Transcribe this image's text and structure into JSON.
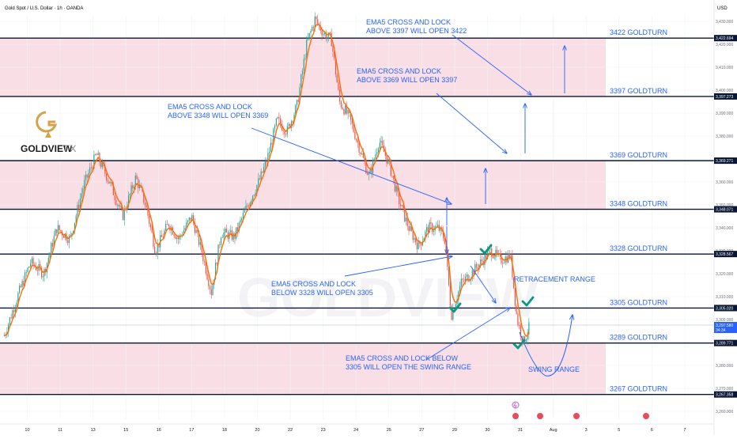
{
  "chart_data": {
    "type": "candlestick",
    "title": "Gold Spot / U.S. Dollar · 1h · OANDA",
    "currency_label": "USD",
    "y_axis": {
      "min": 3252.6,
      "max": 3433.9,
      "ticks": [
        3260,
        3270,
        3280,
        3290,
        3300,
        3310,
        3320,
        3330,
        3340,
        3350,
        3360,
        3370,
        3380,
        3390,
        3400,
        3410,
        3420,
        3430
      ]
    },
    "x_axis": {
      "labels": [
        {
          "label": "10",
          "t": 0.7
        },
        {
          "label": "11",
          "t": 1.7
        },
        {
          "label": "13",
          "t": 2.7
        },
        {
          "label": "15",
          "t": 3.7
        },
        {
          "label": "16",
          "t": 4.7
        },
        {
          "label": "17",
          "t": 5.7
        },
        {
          "label": "18",
          "t": 6.7
        },
        {
          "label": "20",
          "t": 7.7
        },
        {
          "label": "22",
          "t": 8.7
        },
        {
          "label": "23",
          "t": 9.7
        },
        {
          "label": "24",
          "t": 10.7
        },
        {
          "label": "25",
          "t": 11.7
        },
        {
          "label": "27",
          "t": 12.7
        },
        {
          "label": "29",
          "t": 13.7
        },
        {
          "label": "30",
          "t": 14.7
        },
        {
          "label": "31",
          "t": 15.7
        },
        {
          "label": "Aug",
          "t": 16.7
        },
        {
          "label": "3",
          "t": 17.7
        },
        {
          "label": "5",
          "t": 18.7
        },
        {
          "label": "6",
          "t": 19.7
        },
        {
          "label": "7",
          "t": 20.7
        }
      ]
    },
    "price_path": [
      {
        "t": 0.0,
        "p": 3293
      },
      {
        "t": 0.4,
        "p": 3310
      },
      {
        "t": 0.8,
        "p": 3325
      },
      {
        "t": 1.2,
        "p": 3320
      },
      {
        "t": 1.6,
        "p": 3340
      },
      {
        "t": 2.0,
        "p": 3335
      },
      {
        "t": 2.4,
        "p": 3358
      },
      {
        "t": 2.8,
        "p": 3372
      },
      {
        "t": 3.2,
        "p": 3360
      },
      {
        "t": 3.6,
        "p": 3345
      },
      {
        "t": 4.0,
        "p": 3362
      },
      {
        "t": 4.3,
        "p": 3350
      },
      {
        "t": 4.6,
        "p": 3330
      },
      {
        "t": 5.0,
        "p": 3342
      },
      {
        "t": 5.3,
        "p": 3335
      },
      {
        "t": 5.7,
        "p": 3345
      },
      {
        "t": 6.0,
        "p": 3330
      },
      {
        "t": 6.3,
        "p": 3312
      },
      {
        "t": 6.6,
        "p": 3338
      },
      {
        "t": 7.0,
        "p": 3336
      },
      {
        "t": 7.4,
        "p": 3350
      },
      {
        "t": 7.8,
        "p": 3362
      },
      {
        "t": 8.0,
        "p": 3370
      },
      {
        "t": 8.3,
        "p": 3387
      },
      {
        "t": 8.6,
        "p": 3382
      },
      {
        "t": 8.9,
        "p": 3393
      },
      {
        "t": 9.2,
        "p": 3420
      },
      {
        "t": 9.45,
        "p": 3431
      },
      {
        "t": 9.7,
        "p": 3425
      },
      {
        "t": 9.95,
        "p": 3422
      },
      {
        "t": 10.2,
        "p": 3395
      },
      {
        "t": 10.5,
        "p": 3388
      },
      {
        "t": 10.8,
        "p": 3375
      },
      {
        "t": 11.1,
        "p": 3362
      },
      {
        "t": 11.4,
        "p": 3378
      },
      {
        "t": 11.7,
        "p": 3368
      },
      {
        "t": 12.0,
        "p": 3352
      },
      {
        "t": 12.3,
        "p": 3340
      },
      {
        "t": 12.6,
        "p": 3332
      },
      {
        "t": 12.9,
        "p": 3340
      },
      {
        "t": 13.2,
        "p": 3340
      },
      {
        "t": 13.4,
        "p": 3335
      },
      {
        "t": 13.6,
        "p": 3302
      },
      {
        "t": 13.9,
        "p": 3316
      },
      {
        "t": 14.2,
        "p": 3320
      },
      {
        "t": 14.5,
        "p": 3325
      },
      {
        "t": 14.8,
        "p": 3330
      },
      {
        "t": 15.1,
        "p": 3326
      },
      {
        "t": 15.4,
        "p": 3328
      },
      {
        "t": 15.6,
        "p": 3300
      },
      {
        "t": 15.8,
        "p": 3290
      },
      {
        "t": 16.0,
        "p": 3298
      }
    ],
    "goldturn_levels": [
      {
        "value": 3422.694,
        "label": "3422 GOLDTURN",
        "price_tag": "3,422.694"
      },
      {
        "value": 3397.273,
        "label": "3397 GOLDTURN",
        "price_tag": "3,397.273"
      },
      {
        "value": 3369.271,
        "label": "3369 GOLDTURN",
        "price_tag": "3,369.271"
      },
      {
        "value": 3348.071,
        "label": "3348 GOLDTURN",
        "price_tag": "3,348.071"
      },
      {
        "value": 3328.567,
        "label": "3328 GOLDTURN",
        "price_tag": "3,328.567"
      },
      {
        "value": 3305.02,
        "label": "3305 GOLDTURN",
        "price_tag": "3,305.020"
      },
      {
        "value": 3289.771,
        "label": "3289 GOLDTURN",
        "price_tag": "3,289.771"
      },
      {
        "value": 3267.358,
        "label": "3267 GOLDTURN",
        "price_tag": "3,267.358"
      }
    ],
    "shaded_zones": [
      {
        "from": 3397.273,
        "to": 3422.694
      },
      {
        "from": 3348.071,
        "to": 3369.271
      },
      {
        "from": 3267.358,
        "to": 3289.771
      }
    ],
    "current_price": {
      "value": 3297.58,
      "price_tag": "3,297.580",
      "countdown": "34:34"
    },
    "annotations": [
      {
        "lines": [
          "EMA5 CROSS AND LOCK",
          "ABOVE 3397 WILL OPEN 3422"
        ]
      },
      {
        "lines": [
          "EMA5 CROSS AND LOCK",
          "ABOVE 3369 WILL OPEN 3397"
        ]
      },
      {
        "lines": [
          "EMA5 CROSS AND LOCK",
          "ABOVE 3348 WILL OPEN 3369"
        ]
      },
      {
        "lines": [
          "EMA5 CROSS AND LOCK",
          "BELOW 3328 WILL OPEN 3305"
        ]
      },
      {
        "lines": [
          "EMA5 CROSS AND LOCK BELOW",
          "3305 WILL OPEN THE SWING RANGE"
        ]
      },
      {
        "lines": [
          "RETRACEMENT RANGE"
        ]
      },
      {
        "lines": [
          "SWING RANGE"
        ]
      }
    ],
    "grid": true,
    "legend": "none"
  },
  "brand": {
    "name_primary": "GOLDVIEW",
    "name_secondary": "FX",
    "watermark": "GOLDVIEW",
    "logo_letter": "G"
  },
  "colors": {
    "zone_fill": "#f9dfe5",
    "level_line": "#0a1633",
    "annotation_blue": "#2962ff",
    "candle_up": "#26a69a",
    "candle_down": "#ef5350",
    "ema": "#ff6d00",
    "check": "#089981",
    "gold": "#d4a24c",
    "axis_text": "#131722"
  }
}
